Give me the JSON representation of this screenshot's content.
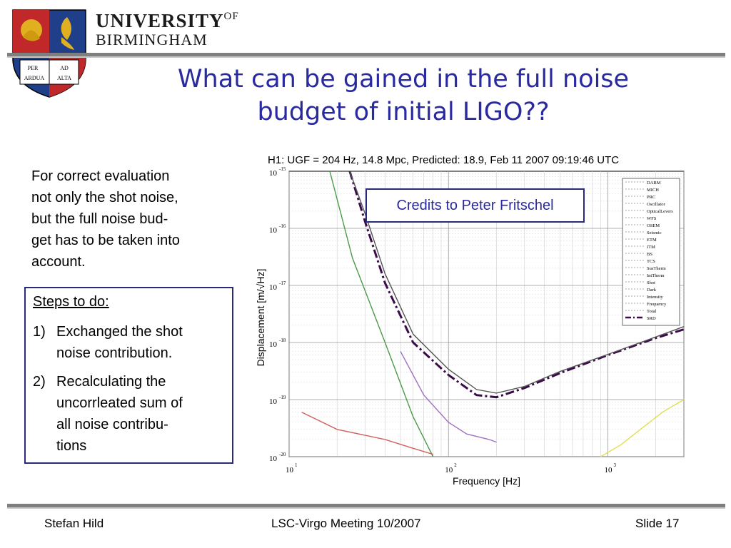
{
  "header": {
    "university_line1": "UNIVERSITY",
    "university_of": "OF",
    "university_line2": "BIRMINGHAM",
    "crest_motto_1": "PER",
    "crest_motto_2": "AD",
    "crest_motto_3": "ARDUA",
    "crest_motto_4": "ALTA"
  },
  "slide": {
    "title_line1": "What can be gained in the full noise",
    "title_line2": "budget of initial LIGO??",
    "body_lines": [
      "For correct evaluation",
      "not only the shot noise,",
      "but the full noise bud-",
      "get has to be taken into",
      "account."
    ],
    "steps_heading": "Steps to do:",
    "steps": [
      {
        "num": "1)",
        "lines": [
          "Exchanged the shot",
          "noise contribution."
        ]
      },
      {
        "num": "2)",
        "lines": [
          "Recalculating the",
          "uncorrleated sum of",
          "all noise contribu-",
          "tions"
        ]
      }
    ],
    "credits": "Credits to Peter Fritschel"
  },
  "chart_data": {
    "type": "line",
    "title": "H1: UGF = 204 Hz, 14.8 Mpc, Predicted: 18.9, Feb 11 2007 09:19:46 UTC",
    "xlabel": "Frequency [Hz]",
    "ylabel": "Displacement [m/√Hz]",
    "xscale": "log",
    "yscale": "log",
    "xlim": [
      10,
      3000
    ],
    "ylim": [
      1e-20,
      1e-15
    ],
    "x_ticks": [
      {
        "base": "10",
        "exp": "1",
        "value": 10
      },
      {
        "base": "10",
        "exp": "2",
        "value": 100
      },
      {
        "base": "10",
        "exp": "3",
        "value": 1000
      }
    ],
    "y_ticks": [
      {
        "base": "10",
        "exp": "-15",
        "value": 1e-15
      },
      {
        "base": "10",
        "exp": "-16",
        "value": 1e-16
      },
      {
        "base": "10",
        "exp": "-17",
        "value": 1e-17
      },
      {
        "base": "10",
        "exp": "-18",
        "value": 1e-18
      },
      {
        "base": "10",
        "exp": "-19",
        "value": 1e-19
      },
      {
        "base": "10",
        "exp": "-20",
        "value": 1e-20
      }
    ],
    "grid": true,
    "legend_position": "top-right",
    "legend": [
      "DARM",
      "MICH",
      "PRC",
      "Oscillator",
      "OpticalLevers",
      "WFS",
      "OSEM",
      "Seismic",
      "ETM",
      "ITM",
      "BS",
      "TCS",
      "SusTherm",
      "IntTherm",
      "Shot",
      "Dark",
      "Intensity",
      "Frequency",
      "Total",
      "SRD"
    ],
    "series": [
      {
        "name": "SRD",
        "color": "#3a0a4a",
        "style": "dash-dot",
        "x": [
          24,
          30,
          40,
          60,
          100,
          150,
          200,
          300,
          500,
          1000,
          2000,
          3000
        ],
        "y": [
          1e-15,
          1.3e-16,
          1.1e-17,
          1e-18,
          2.7e-19,
          1.2e-19,
          1.1e-19,
          1.6e-19,
          2.9e-19,
          6e-19,
          1.2e-18,
          1.7e-18
        ]
      },
      {
        "name": "Total",
        "color": "#555555",
        "style": "solid",
        "x": [
          24,
          30,
          40,
          60,
          100,
          150,
          200,
          300,
          500,
          1000,
          2000,
          3000
        ],
        "y": [
          1e-15,
          1.8e-16,
          1.6e-17,
          1.4e-18,
          3.4e-19,
          1.5e-19,
          1.3e-19,
          1.7e-19,
          3.1e-19,
          6.2e-19,
          1.25e-18,
          1.9e-18
        ]
      },
      {
        "name": "Shot",
        "color": "#a070c0",
        "style": "solid",
        "x": [
          50,
          70,
          100,
          130,
          180,
          200
        ],
        "y": [
          7e-19,
          1.2e-19,
          4e-20,
          2.5e-20,
          2e-20,
          1.8e-20
        ]
      },
      {
        "name": "Seismic",
        "color": "#4a9a4a",
        "style": "solid",
        "x": [
          18,
          25,
          40,
          60,
          80
        ],
        "y": [
          1e-15,
          3e-17,
          1e-18,
          5e-20,
          1e-20
        ]
      },
      {
        "name": "Dark",
        "color": "#d06060",
        "style": "solid",
        "x": [
          12,
          20,
          40,
          60,
          80
        ],
        "y": [
          6e-20,
          3e-20,
          2e-20,
          1.4e-20,
          1.1e-20
        ]
      },
      {
        "name": "Frequency",
        "color": "#e0e050",
        "style": "solid",
        "x": [
          900,
          1200,
          1600,
          2200,
          3000
        ],
        "y": [
          1e-20,
          1.6e-20,
          3e-20,
          6e-20,
          1e-19
        ]
      }
    ]
  },
  "footer": {
    "author": "Stefan Hild",
    "meeting": "LSC-Virgo Meeting 10/2007",
    "slide_number": "Slide 17"
  },
  "colors": {
    "title_blue": "#2a2aa0",
    "box_border": "#2a2a7a",
    "rule_gray": "#7f7f7f",
    "crest_red": "#c0282a",
    "crest_blue": "#1f3f8a",
    "crest_gold": "#e0b020"
  }
}
